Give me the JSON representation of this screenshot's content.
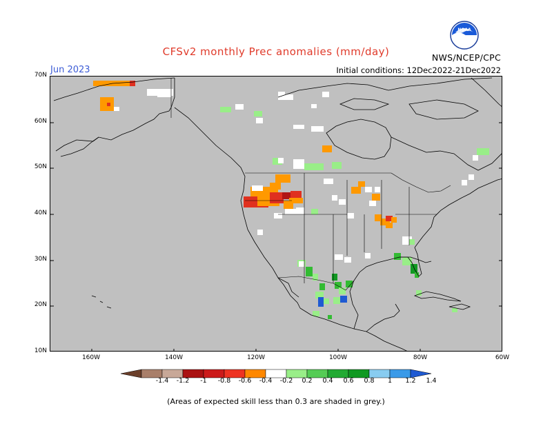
{
  "title": "CFSv2 monthly Prec anomalies (mm/day)",
  "month_label": "Jun 2023",
  "agency": "NWS/NCEP/CPC",
  "logo_text": "NOAA",
  "initial_conditions": "Initial conditions: 12Dec2022-21Dec2022",
  "lat_labels": [
    "70N",
    "60N",
    "50N",
    "40N",
    "30N",
    "20N",
    "10N"
  ],
  "lon_labels": [
    "160W",
    "140W",
    "120W",
    "100W",
    "80W",
    "60W"
  ],
  "colorbar": {
    "tick_labels": [
      "-1.4",
      "-1.2",
      "-1",
      "-0.8",
      "-0.6",
      "-0.4",
      "-0.2",
      "0.2",
      "0.4",
      "0.6",
      "0.8",
      "1",
      "1.2",
      "1.4"
    ],
    "colors": [
      "#7a4f35",
      "#a97f6a",
      "#c8a898",
      "#aa1111",
      "#cc1a1a",
      "#ee3322",
      "#ff8800",
      "#ffffff",
      "#99ee88",
      "#55cc55",
      "#22aa33",
      "#109922",
      "#88ccf0",
      "#3a9ae8",
      "#1f5ad2",
      "#3a9ae8"
    ]
  },
  "map_colors": {
    "land_grey": "#c0c0c0",
    "white": "#ffffff",
    "orange": "#ff9900",
    "red": "#e0301f",
    "darkred": "#b01515",
    "lightgreen": "#99ee88",
    "green": "#33bb33",
    "darkgreen": "#119922",
    "blue": "#1f5ad2"
  },
  "footnote": "(Areas of expected skill less than 0.3 are shaded in grey.)"
}
